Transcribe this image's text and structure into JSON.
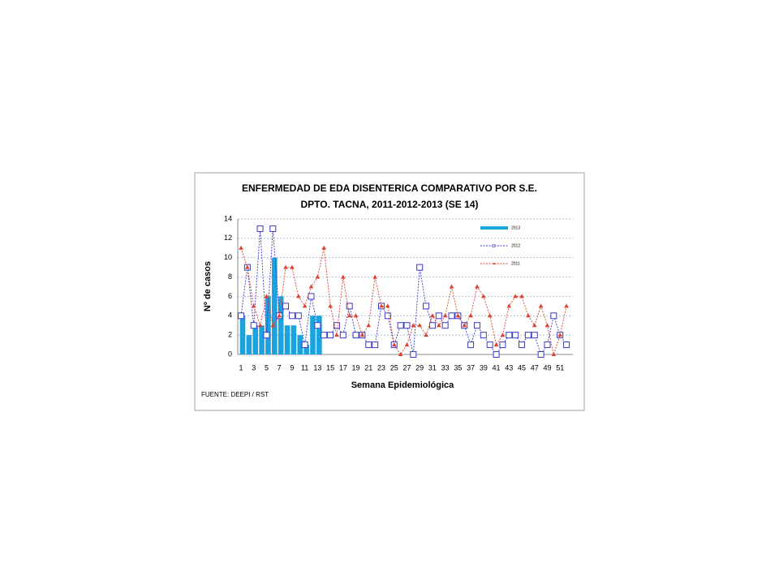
{
  "chart_data": {
    "type": "bar-line",
    "title": "ENFERMEDAD DE EDA DISENTERICA COMPARATIVO POR S.E.",
    "subtitle": "DPTO.  TACNA, 2011-2012-2013 (SE 14)",
    "x_label": "Semana Epidemiológica",
    "y_label": "Nº de casos",
    "source": "FUENTE: DEEPI / RST",
    "categories": [
      "1",
      null,
      "3",
      null,
      "5",
      null,
      "7",
      null,
      "9",
      null,
      "11",
      null,
      "13",
      null,
      "15",
      null,
      "17",
      null,
      "19",
      null,
      "21",
      null,
      "23",
      null,
      "25",
      null,
      "27",
      null,
      "29",
      null,
      "31",
      null,
      "33",
      null,
      "35",
      null,
      "37",
      null,
      "39",
      null,
      "41",
      null,
      "43",
      null,
      "45",
      null,
      "47",
      null,
      "49",
      null,
      "51",
      null
    ],
    "series": [
      {
        "name": "2013",
        "kind": "bar",
        "color": "#1ba3e0",
        "values": [
          4,
          2,
          3,
          3,
          6,
          10,
          6,
          3,
          3,
          2,
          1,
          4,
          4,
          null,
          null,
          null,
          null,
          null,
          null,
          null,
          null,
          null,
          null,
          null,
          null,
          null,
          null,
          null,
          null,
          null,
          null,
          null,
          null,
          null,
          null,
          null,
          null,
          null,
          null,
          null,
          null,
          null,
          null,
          null,
          null,
          null,
          null,
          null,
          null,
          null,
          null,
          null
        ]
      },
      {
        "name": "2012",
        "kind": "line",
        "marker": "square",
        "color": "#3a3ac8",
        "values": [
          4,
          9,
          3,
          13,
          2,
          13,
          4,
          5,
          4,
          4,
          1,
          6,
          3,
          2,
          2,
          3,
          2,
          5,
          2,
          2,
          1,
          1,
          5,
          4,
          1,
          3,
          3,
          0,
          9,
          5,
          3,
          4,
          3,
          4,
          4,
          3,
          1,
          3,
          2,
          1,
          0,
          1,
          2,
          2,
          1,
          2,
          2,
          0,
          1,
          4,
          2,
          1
        ]
      },
      {
        "name": "2011",
        "kind": "line",
        "marker": "triangle",
        "color": "#e0402e",
        "values": [
          11,
          9,
          5,
          3,
          6,
          3,
          4,
          9,
          9,
          6,
          5,
          7,
          8,
          11,
          5,
          2,
          8,
          4,
          4,
          2,
          3,
          8,
          5,
          5,
          1,
          0,
          1,
          3,
          3,
          2,
          4,
          3,
          4,
          7,
          4,
          3,
          4,
          7,
          6,
          4,
          1,
          2,
          5,
          6,
          6,
          4,
          3,
          5,
          3,
          0,
          2,
          5
        ]
      }
    ],
    "ylim": [
      0,
      14
    ],
    "yticks": [
      0,
      2,
      4,
      6,
      8,
      10,
      12,
      14
    ],
    "grid": true,
    "legend": "upper right"
  }
}
